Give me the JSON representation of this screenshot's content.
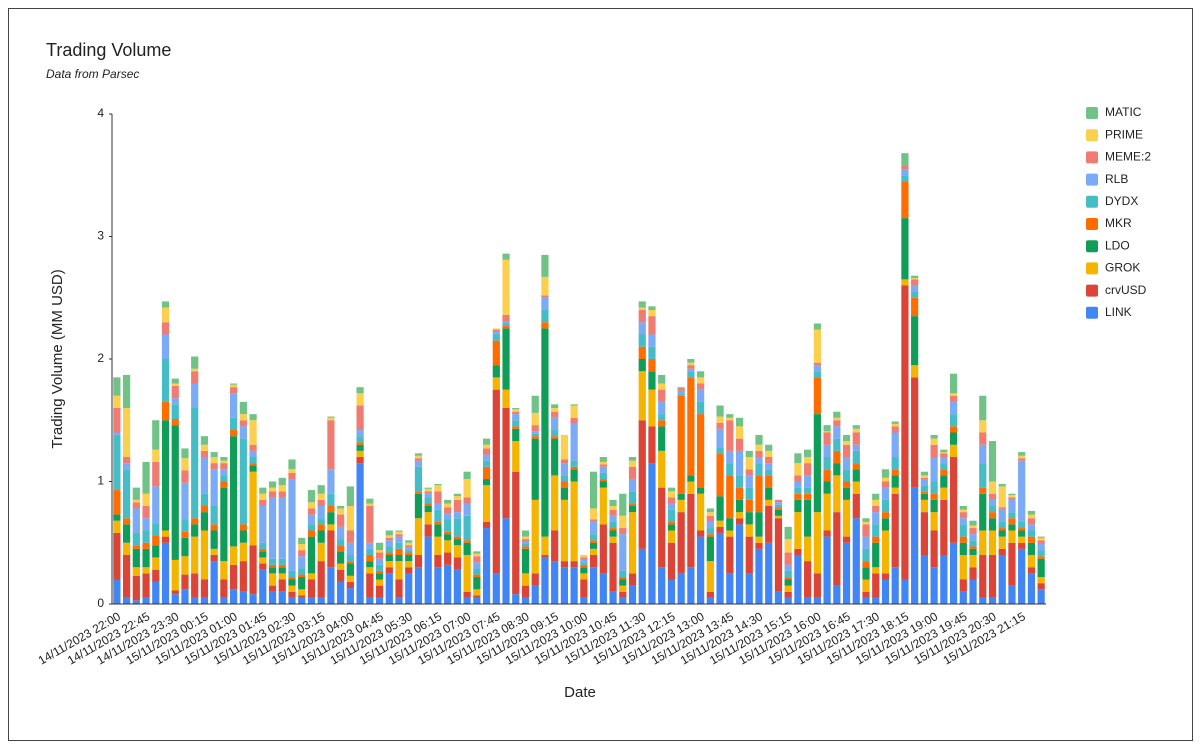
{
  "chart_data": {
    "type": "stacked_bar",
    "title": "Trading Volume",
    "subtitle": "Data from Parsec",
    "x_label": "Date",
    "y_label": "Trading Volume (MM USD)",
    "ylim": [
      0,
      4
    ],
    "yticks": [
      0,
      1,
      2,
      3,
      4
    ],
    "grid": false,
    "legend": "right",
    "categories": [
      "14/11/2023 22:00",
      null,
      null,
      "14/11/2023 22:45",
      null,
      null,
      "14/11/2023 23:30",
      null,
      null,
      "15/11/2023 00:15",
      null,
      null,
      "15/11/2023 01:00",
      null,
      null,
      "15/11/2023 01:45",
      null,
      null,
      "15/11/2023 02:30",
      null,
      null,
      "15/11/2023 03:15",
      null,
      null,
      "15/11/2023 04:00",
      null,
      null,
      "15/11/2023 04:45",
      null,
      null,
      "15/11/2023 05:30",
      null,
      null,
      "15/11/2023 06:15",
      null,
      null,
      "15/11/2023 07:00",
      null,
      null,
      "15/11/2023 07:45",
      null,
      null,
      "15/11/2023 08:30",
      null,
      null,
      "15/11/2023 09:15",
      null,
      null,
      "15/11/2023 10:00",
      null,
      null,
      "15/11/2023 10:45",
      null,
      null,
      "15/11/2023 11:30",
      null,
      null,
      "15/11/2023 12:15",
      null,
      null,
      "15/11/2023 13:00",
      null,
      null,
      "15/11/2023 13:45",
      null,
      null,
      "15/11/2023 14:30",
      null,
      null,
      "15/11/2023 15:15",
      null,
      null,
      "15/11/2023 16:00",
      null,
      null,
      "15/11/2023 16:45",
      null,
      null,
      "15/11/2023 17:30",
      null,
      null,
      "15/11/2023 18:15",
      null,
      null,
      "15/11/2023 19:00",
      null,
      null,
      "15/11/2023 19:45",
      null,
      null,
      "15/11/2023 20:30",
      null,
      null,
      "15/11/2023 21:15",
      null,
      null
    ],
    "series": [
      {
        "name": "LINK",
        "color": "#4285f4",
        "values": [
          0.2,
          0.05,
          0.03,
          0.05,
          0.18,
          0.5,
          0.08,
          0.12,
          0.05,
          0.05,
          0.35,
          0.05,
          0.12,
          0.1,
          0.08,
          0.28,
          0.1,
          0.1,
          0.05,
          0.05,
          0.05,
          0.05,
          0.3,
          0.18,
          0.13,
          1.15,
          0.05,
          0.05,
          0.25,
          0.05,
          0.25,
          0.3,
          0.55,
          0.3,
          0.32,
          0.28,
          0.05,
          0.05,
          0.62,
          0.25,
          0.7,
          0.08,
          0.05,
          0.15,
          0.38,
          0.35,
          0.3,
          0.3,
          0.05,
          0.3,
          0.25,
          0.1,
          0.05,
          0.15,
          0.45,
          1.15,
          0.3,
          0.2,
          0.25,
          0.3,
          0.55,
          0.05,
          0.58,
          0.25,
          0.65,
          0.25,
          0.45,
          0.5,
          0.1,
          0.05,
          0.4,
          0.05,
          0.05,
          0.55,
          0.15,
          0.5,
          0.7,
          0.05,
          0.05,
          0.2,
          0.3,
          0.2,
          0.95,
          0.4,
          0.3,
          0.4,
          0.5,
          0.1,
          0.2,
          0.05,
          0.05,
          0.4,
          0.15,
          0.45,
          0.25,
          0.12
        ]
      },
      {
        "name": "crvUSD",
        "color": "#db4437",
        "values": [
          0.38,
          0.35,
          0.2,
          0.2,
          0.1,
          0.05,
          0.03,
          0.12,
          0.2,
          0.15,
          0.05,
          0.15,
          0.2,
          0.25,
          0.4,
          0.05,
          0.05,
          0.1,
          0.05,
          0.02,
          0.15,
          0.3,
          0.3,
          0.1,
          0.05,
          0.05,
          0.2,
          0.1,
          0.05,
          0.15,
          0.05,
          0.1,
          0.1,
          0.1,
          0.1,
          0.1,
          0.05,
          0.02,
          0.05,
          1.5,
          0.9,
          1.0,
          0.1,
          0.1,
          0.02,
          0.25,
          0.05,
          0.05,
          0.15,
          0.1,
          0.4,
          0.4,
          0.05,
          0.1,
          1.05,
          0.3,
          0.65,
          0.3,
          0.5,
          0.6,
          0.05,
          0.05,
          0.05,
          0.3,
          0.05,
          0.3,
          0.05,
          0.3,
          0.6,
          0.05,
          0.05,
          0.3,
          0.2,
          0.05,
          0.6,
          0.05,
          0.2,
          0.05,
          0.2,
          0.05,
          0.6,
          2.4,
          0.9,
          0.35,
          0.3,
          0.45,
          0.7,
          0.1,
          0.1,
          0.35,
          0.35,
          0.05,
          0.35,
          0.05,
          0.05,
          0.05
        ]
      },
      {
        "name": "GROK",
        "color": "#f4b400",
        "values": [
          0.1,
          0.1,
          0.07,
          0.05,
          0.1,
          0.05,
          0.25,
          0.15,
          0.3,
          0.4,
          0.05,
          0.15,
          0.15,
          0.15,
          0.6,
          0.05,
          0.1,
          0.05,
          0.05,
          0.05,
          0.05,
          0.15,
          0.05,
          0.05,
          0.05,
          0.05,
          0.05,
          0.05,
          0.05,
          0.15,
          0.05,
          0.3,
          0.1,
          0.15,
          0.1,
          0.1,
          0.3,
          0.05,
          0.3,
          0.1,
          0.15,
          0.25,
          0.1,
          0.6,
          0.15,
          0.45,
          0.5,
          0.65,
          0.05,
          0.05,
          0.3,
          0.05,
          0.05,
          0.5,
          0.4,
          0.3,
          0.3,
          0.1,
          0.1,
          0.1,
          0.3,
          0.25,
          0.05,
          0.05,
          0.05,
          0.1,
          0.05,
          0.05,
          0.02,
          0.05,
          0.3,
          0.2,
          0.5,
          0.3,
          0.3,
          0.3,
          0.1,
          0.1,
          0.05,
          0.35,
          0.05,
          0.05,
          0.1,
          0.1,
          0.15,
          0.1,
          0.1,
          0.2,
          0.1,
          0.2,
          0.2,
          0.1,
          0.1,
          0.05,
          0.1,
          0.05
        ]
      },
      {
        "name": "LDO",
        "color": "#0f9d58",
        "values": [
          0.05,
          0.15,
          0.15,
          0.15,
          0.1,
          0.9,
          1.1,
          0.15,
          0.1,
          0.15,
          0.15,
          0.6,
          0.9,
          0.1,
          0.05,
          0.05,
          0.05,
          0.05,
          0.05,
          0.1,
          0.3,
          0.1,
          0.1,
          0.1,
          0.1,
          0.05,
          0.05,
          0.05,
          0.05,
          0.05,
          0.05,
          0.2,
          0.05,
          0.1,
          0.05,
          0.05,
          0.1,
          0.1,
          0.05,
          0.1,
          0.5,
          0.1,
          0.2,
          0.5,
          1.7,
          0.3,
          0.1,
          0.1,
          0.05,
          0.05,
          0.05,
          0.05,
          0.05,
          0.05,
          0.1,
          0.15,
          0.2,
          0.05,
          0.05,
          0.05,
          0.05,
          0.2,
          0.2,
          0.1,
          0.1,
          0.1,
          0.2,
          0.1,
          0.05,
          0.05,
          0.1,
          0.3,
          0.8,
          0.1,
          0.1,
          0.1,
          0.1,
          0.1,
          0.2,
          0.1,
          0.1,
          0.5,
          0.4,
          0.05,
          0.1,
          0.1,
          0.1,
          0.1,
          0.05,
          0.3,
          0.1,
          0.05,
          0.05,
          0.05,
          0.1,
          0.15
        ]
      },
      {
        "name": "MKR",
        "color": "#ff6d01",
        "values": [
          0.2,
          0.05,
          0.03,
          0.05,
          0.08,
          0.15,
          0.05,
          0.05,
          0.05,
          0.05,
          0.05,
          0.05,
          0.05,
          0.05,
          0.02,
          0.02,
          0.02,
          0.02,
          0.02,
          0.02,
          0.05,
          0.05,
          0.05,
          0.05,
          0.02,
          0.02,
          0.05,
          0.02,
          0.02,
          0.05,
          0.02,
          0.02,
          0.02,
          0.02,
          0.02,
          0.02,
          0.02,
          0.02,
          0.1,
          0.2,
          0.02,
          0.02,
          0.02,
          0.02,
          0.05,
          0.02,
          0.05,
          0.02,
          0.02,
          0.02,
          0.02,
          0.02,
          0.02,
          0.02,
          0.1,
          0.1,
          0.05,
          0.02,
          0.8,
          0.8,
          0.6,
          0.02,
          0.35,
          0.35,
          0.1,
          0.1,
          0.3,
          0.1,
          0.02,
          0.02,
          0.05,
          0.05,
          0.3,
          0.1,
          0.1,
          0.05,
          0.05,
          0.05,
          0.05,
          0.05,
          0.05,
          0.3,
          0.15,
          0.02,
          0.05,
          0.05,
          0.05,
          0.05,
          0.02,
          0.05,
          0.05,
          0.02,
          0.05,
          0.02,
          0.05,
          0.02
        ]
      },
      {
        "name": "DYDX",
        "color": "#46bdc6",
        "values": [
          0.45,
          0.4,
          0.1,
          0.1,
          0.1,
          0.35,
          0.12,
          0.1,
          0.9,
          0.1,
          0.15,
          0.05,
          0.1,
          0.7,
          0.05,
          0.05,
          0.05,
          0.05,
          0.05,
          0.05,
          0.05,
          0.05,
          0.1,
          0.05,
          0.05,
          0.05,
          0.05,
          0.05,
          0.05,
          0.05,
          0.02,
          0.2,
          0.05,
          0.1,
          0.1,
          0.15,
          0.2,
          0.05,
          0.05,
          0.05,
          0.02,
          0.05,
          0.02,
          0.02,
          0.1,
          0.05,
          0.05,
          0.05,
          0.02,
          0.05,
          0.05,
          0.05,
          0.05,
          0.1,
          0.1,
          0.1,
          0.05,
          0.1,
          0.02,
          0.05,
          0.1,
          0.05,
          0.05,
          0.1,
          0.1,
          0.1,
          0.1,
          0.05,
          0.02,
          0.05,
          0.05,
          0.05,
          0.05,
          0.1,
          0.1,
          0.1,
          0.1,
          0.1,
          0.1,
          0.1,
          0.1,
          0.05,
          0.05,
          0.05,
          0.1,
          0.05,
          0.1,
          0.1,
          0.05,
          0.2,
          0.05,
          0.05,
          0.05,
          0.05,
          0.05,
          0.05
        ]
      },
      {
        "name": "RLB",
        "color": "#7baaf7",
        "values": [
          0.02,
          0.05,
          0.2,
          0.1,
          0.3,
          0.2,
          0.05,
          0.3,
          0.2,
          0.3,
          0.3,
          0.05,
          0.2,
          0.1,
          0.05,
          0.3,
          0.5,
          0.5,
          0.75,
          0.1,
          0.08,
          0.1,
          0.2,
          0.1,
          0.1,
          0.05,
          0.05,
          0.05,
          0.05,
          0.05,
          0.02,
          0.05,
          0.03,
          0.05,
          0.05,
          0.05,
          0.1,
          0.05,
          0.05,
          0.02,
          0.02,
          0.05,
          0.02,
          0.02,
          0.1,
          0.1,
          0.1,
          0.3,
          0.02,
          0.1,
          0.05,
          0.05,
          0.3,
          0.1,
          0.1,
          0.1,
          0.1,
          0.05,
          0.02,
          0.02,
          0.1,
          0.05,
          0.15,
          0.1,
          0.2,
          0.1,
          0.05,
          0.05,
          0.02,
          0.05,
          0.05,
          0.1,
          0.05,
          0.1,
          0.1,
          0.1,
          0.05,
          0.1,
          0.1,
          0.1,
          0.2,
          0.05,
          0.05,
          0.05,
          0.2,
          0.05,
          0.1,
          0.05,
          0.05,
          0.15,
          0.05,
          0.1,
          0.1,
          0.5,
          0.05,
          0.05
        ]
      },
      {
        "name": "MEME:2",
        "color": "#f07b72",
        "values": [
          0.2,
          0.05,
          0.05,
          0.1,
          0.2,
          0.1,
          0.1,
          0.1,
          0.1,
          0.05,
          0.05,
          0.05,
          0.05,
          0.05,
          0.05,
          0.05,
          0.05,
          0.05,
          0.05,
          0.05,
          0.05,
          0.05,
          0.4,
          0.1,
          0.1,
          0.2,
          0.3,
          0.05,
          0.02,
          0.02,
          0.02,
          0.02,
          0.02,
          0.1,
          0.05,
          0.1,
          0.05,
          0.05,
          0.05,
          0.02,
          0.05,
          0.02,
          0.02,
          0.05,
          0.02,
          0.05,
          0.03,
          0.05,
          0.02,
          0.02,
          0.02,
          0.05,
          0.05,
          0.1,
          0.1,
          0.15,
          0.1,
          0.05,
          0.02,
          0.03,
          0.05,
          0.05,
          0.05,
          0.25,
          0.1,
          0.05,
          0.05,
          0.05,
          0.02,
          0.1,
          0.05,
          0.1,
          0.02,
          0.1,
          0.05,
          0.1,
          0.1,
          0.1,
          0.05,
          0.05,
          0.05,
          0.03,
          0.05,
          0.01,
          0.1,
          0.03,
          0.05,
          0.05,
          0.05,
          0.1,
          0.05,
          0.02,
          0.02,
          0.02,
          0.05,
          0.03
        ]
      },
      {
        "name": "PRIME",
        "color": "#fcd04f",
        "values": [
          0.1,
          0.4,
          0.02,
          0.1,
          0.1,
          0.12,
          0.02,
          0.1,
          0.02,
          0.05,
          0.05,
          0.02,
          0.02,
          0.05,
          0.2,
          0.05,
          0.03,
          0.05,
          0.03,
          0.05,
          0.05,
          0.05,
          0.02,
          0.05,
          0.2,
          0.1,
          0.02,
          0.02,
          0.02,
          0.02,
          0.02,
          0.02,
          0.02,
          0.05,
          0.03,
          0.03,
          0.15,
          0.02,
          0.03,
          0.01,
          0.45,
          0.02,
          0.02,
          0.1,
          0.15,
          0.03,
          0.2,
          0.1,
          0.02,
          0.09,
          0.02,
          0.03,
          0.1,
          0.05,
          0.02,
          0.05,
          0.05,
          0.05,
          0,
          0.02,
          0.05,
          0.03,
          0.05,
          0.02,
          0.1,
          0.1,
          0.05,
          0.05,
          0,
          0.11,
          0.1,
          0.05,
          0.27,
          0.01,
          0.02,
          0.03,
          0.03,
          0.02,
          0.05,
          0.03,
          0.02,
          0,
          0.01,
          0.02,
          0.05,
          0.01,
          0.02,
          0.02,
          0.02,
          0.1,
          0.1,
          0.17,
          0.02,
          0.02,
          0.03,
          0.02
        ]
      },
      {
        "name": "MATIC",
        "color": "#71c287",
        "values": [
          0.15,
          0.27,
          0.1,
          0.26,
          0.24,
          0.05,
          0.04,
          0.08,
          0.1,
          0.07,
          0.04,
          0.03,
          0.01,
          0.1,
          0.05,
          0.05,
          0.05,
          0.06,
          0.08,
          0.05,
          0.1,
          0.07,
          0.01,
          0.02,
          0.16,
          0.05,
          0.04,
          0.06,
          0.04,
          0.01,
          0.02,
          0.02,
          0.01,
          0.01,
          0.03,
          0.02,
          0.06,
          0.02,
          0.05,
          0,
          0.05,
          0.01,
          0.05,
          0.14,
          0.18,
          0.03,
          0,
          0.01,
          0,
          0.3,
          0.04,
          0.05,
          0.18,
          0.03,
          0.05,
          0.03,
          0.07,
          0.03,
          0.01,
          0.03,
          0.05,
          0.03,
          0.09,
          0.03,
          0.07,
          0.05,
          0.08,
          0.05,
          0,
          0.1,
          0.08,
          0.06,
          0.05,
          0.05,
          0.05,
          0.05,
          0.03,
          0.03,
          0.05,
          0.07,
          0.02,
          0.1,
          0.02,
          0.03,
          0.03,
          0.02,
          0.16,
          0.03,
          0.04,
          0.2,
          0.33,
          0.02,
          0.01,
          0.03,
          0.03,
          0.01
        ]
      }
    ]
  }
}
